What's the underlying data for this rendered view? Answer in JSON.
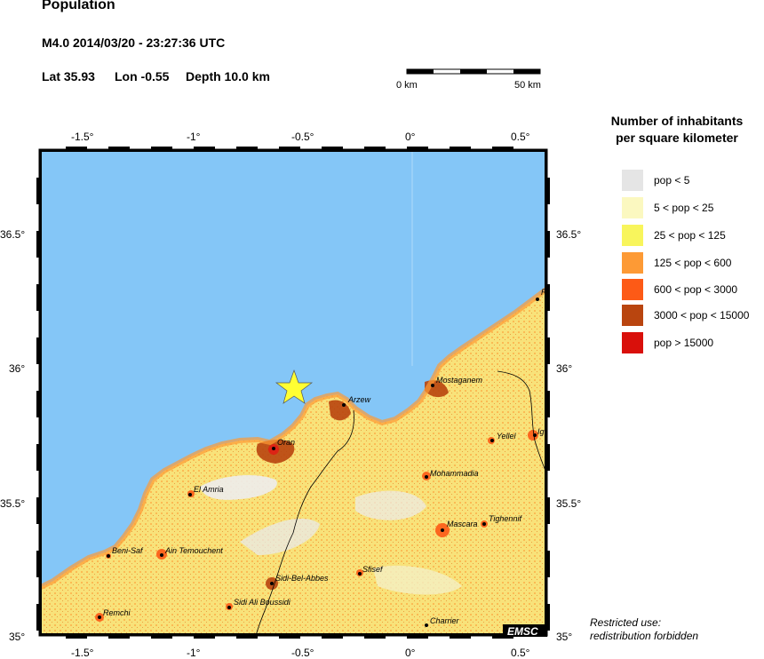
{
  "header": {
    "title": "Population",
    "event_line": "M4.0  2014/03/20 - 23:27:36 UTC",
    "lat_label": "Lat 35.93",
    "lon_label": "Lon  -0.55",
    "depth_label": "Depth  10.0 km"
  },
  "scale_bar": {
    "left_label": "0 km",
    "right_label": "50 km"
  },
  "axes": {
    "lon_ticks": [
      "-1.5°",
      "-1°",
      "-0.5°",
      "0°",
      "0.5°"
    ],
    "lat_ticks": [
      "36.5°",
      "36°",
      "35.5°",
      "35°"
    ]
  },
  "epicenter": {
    "lat": 35.93,
    "lon": -0.55,
    "marker": "star-icon",
    "color": "#ffff33"
  },
  "cities": [
    {
      "name": "Arzew"
    },
    {
      "name": "Mostaganem"
    },
    {
      "name": "Oran"
    },
    {
      "name": "Yellel"
    },
    {
      "name": "Ig"
    },
    {
      "name": "El Amria"
    },
    {
      "name": "Mohammadia"
    },
    {
      "name": "Tighennif"
    },
    {
      "name": "Mascara"
    },
    {
      "name": "Beni-Saf"
    },
    {
      "name": "Ain Temouchent"
    },
    {
      "name": "Sfisef"
    },
    {
      "name": "Sidi-Bel-Abbes"
    },
    {
      "name": "Sidi Ali Boussidi"
    },
    {
      "name": "Remchi"
    },
    {
      "name": "Charrier"
    },
    {
      "name": "R"
    }
  ],
  "legend": {
    "title_line1": "Number of inhabitants",
    "title_line2": "per square kilometer",
    "items": [
      {
        "label": "pop < 5",
        "color": "#e5e5e5"
      },
      {
        "label": "5 < pop < 25",
        "color": "#fbf8c0"
      },
      {
        "label": "25 < pop < 125",
        "color": "#f8f55c"
      },
      {
        "label": "125 < pop < 600",
        "color": "#fd9a35"
      },
      {
        "label": "600 < pop < 3000",
        "color": "#fd5a16"
      },
      {
        "label": "3000 < pop < 15000",
        "color": "#b9450f"
      },
      {
        "label": "pop > 15000",
        "color": "#d9100b"
      }
    ]
  },
  "colors": {
    "sea": "#84c6f7",
    "land_base": "#f8e27a"
  },
  "footer": {
    "emsc_logo": "EMSC",
    "restricted_line1": "Restricted use:",
    "restricted_line2": "redistribution forbidden"
  }
}
